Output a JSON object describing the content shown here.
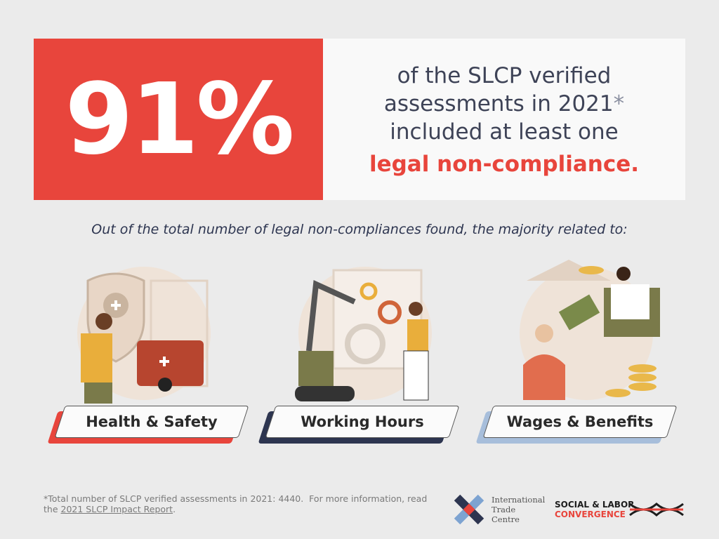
{
  "headline": {
    "stat": "91%",
    "line1": "of the SLCP verified",
    "line2": "assessments in 2021",
    "asterisk": "*",
    "line3": "included at least one",
    "highlight": "legal non-compliance."
  },
  "subtitle": "Out of the total number of legal non-compliances found, the majority related to:",
  "categories": [
    "Health & Safety",
    "Working Hours",
    "Wages & Benefits"
  ],
  "footnote": {
    "text": "*Total number of SLCP verified assessments in 2021: 4440.  For more information, read the ",
    "link": "2021 SLCP Impact Report",
    "end": "."
  },
  "logos": {
    "itc": [
      "International",
      "Trade",
      "Centre"
    ],
    "slc": [
      "SOCIAL & LABOR",
      "CONVERGENCE"
    ]
  }
}
